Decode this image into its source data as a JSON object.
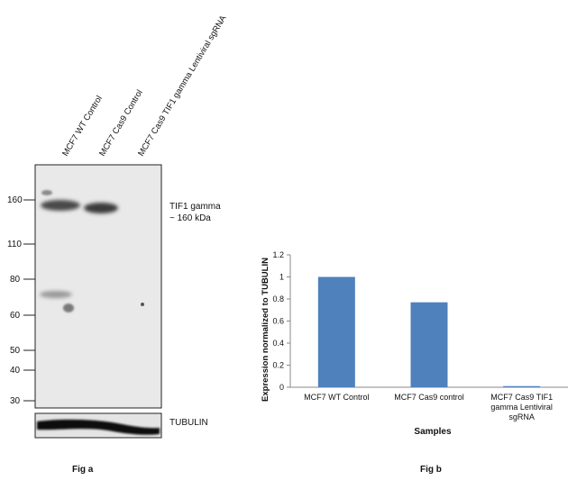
{
  "fig_a": {
    "caption": "Fig a",
    "lanes": [
      "MCF7 WT Control",
      "MCF7 Cas9 Control",
      "MCF7 Cas9 TIF1 gamma Lentiviral sgRNA"
    ],
    "markers": [
      "160",
      "110",
      "80",
      "60",
      "50",
      "40",
      "30"
    ],
    "band_label_line1": "TIF1 gamma",
    "band_label_line2": "~ 160 kDa",
    "loading_label": "TUBULIN"
  },
  "fig_b": {
    "caption": "Fig b"
  },
  "chart_data": {
    "type": "bar",
    "categories": [
      "MCF7 WT Control",
      "MCF7 Cas9 control",
      "MCF7 Cas9 TIF1 gamma Lentiviral sgRNA"
    ],
    "category_lines": [
      [
        "MCF7 WT Control"
      ],
      [
        "MCF7 Cas9 control"
      ],
      [
        "MCF7 Cas9 TIF1",
        "gamma Lentiviral",
        "sgRNA"
      ]
    ],
    "values": [
      1.0,
      0.77,
      0.01
    ],
    "xlabel": "Samples",
    "ylabel": "Expression normalized to TUBULIN",
    "ylim": [
      0,
      1.2
    ],
    "yticks": [
      "0",
      "0.2",
      "0.4",
      "0.6",
      "0.8",
      "1",
      "1.2"
    ],
    "bar_color": "#4f81bd",
    "grid": false,
    "legend": "none"
  }
}
